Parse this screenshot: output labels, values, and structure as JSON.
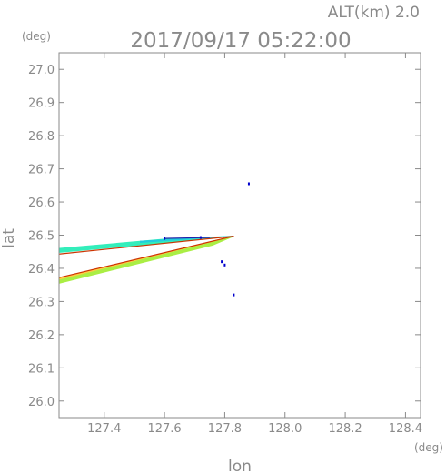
{
  "header": {
    "alt_label": "ALT(km) 2.0",
    "timestamp": "2017/09/17 05:22:00"
  },
  "chart_data": {
    "type": "scatter",
    "title": "2017/09/17 05:22:00",
    "xlabel": "lon",
    "ylabel": "lat",
    "x_unit": "(deg)",
    "y_unit": "(deg)",
    "xlim": [
      127.25,
      128.45
    ],
    "ylim": [
      25.95,
      27.05
    ],
    "x_ticks": [
      127.4,
      127.6,
      127.8,
      128.0,
      128.2,
      128.4
    ],
    "x_tick_labels": [
      "127.4",
      "127.6",
      "127.8",
      "128.0",
      "128.2",
      "128.4"
    ],
    "y_ticks": [
      26.0,
      26.1,
      26.2,
      26.3,
      26.4,
      26.5,
      26.6,
      26.7,
      26.8,
      26.9,
      27.0
    ],
    "y_tick_labels": [
      "26.0",
      "26.1",
      "26.2",
      "26.3",
      "26.4",
      "26.5",
      "26.6",
      "26.7",
      "26.8",
      "26.9",
      "27.0"
    ],
    "grid": false,
    "series": [
      {
        "color": "#0000cc",
        "points": [
          [
            127.88,
            26.655
          ],
          [
            127.79,
            26.42
          ],
          [
            127.8,
            26.41
          ],
          [
            127.83,
            26.32
          ],
          [
            127.72,
            26.493
          ],
          [
            127.6,
            26.49
          ]
        ]
      }
    ],
    "fans": [
      {
        "color": "#33eebb",
        "vertices": [
          [
            127.25,
            26.46
          ],
          [
            127.25,
            26.448
          ],
          [
            127.83,
            26.497
          ],
          [
            127.6,
            26.488
          ]
        ]
      },
      {
        "color": "#22ccdd",
        "vertices": [
          [
            127.52,
            26.482
          ],
          [
            127.83,
            26.497
          ],
          [
            127.52,
            26.478
          ]
        ]
      },
      {
        "color": "#aaee44",
        "vertices": [
          [
            127.25,
            26.365
          ],
          [
            127.25,
            26.355
          ],
          [
            127.76,
            26.47
          ],
          [
            127.83,
            26.497
          ]
        ]
      },
      {
        "color": "#ffcc44",
        "vertices": [
          [
            127.25,
            26.37
          ],
          [
            127.83,
            26.497
          ],
          [
            127.25,
            26.367
          ]
        ]
      }
    ],
    "lines": [
      {
        "color": "#cc3300",
        "from": [
          127.25,
          26.443
        ],
        "to": [
          127.83,
          26.497
        ]
      },
      {
        "color": "#cc3300",
        "from": [
          127.25,
          26.372
        ],
        "to": [
          127.83,
          26.497
        ]
      },
      {
        "color": "#2222aa",
        "from": [
          127.6,
          26.49
        ],
        "to": [
          127.75,
          26.493
        ]
      }
    ]
  }
}
